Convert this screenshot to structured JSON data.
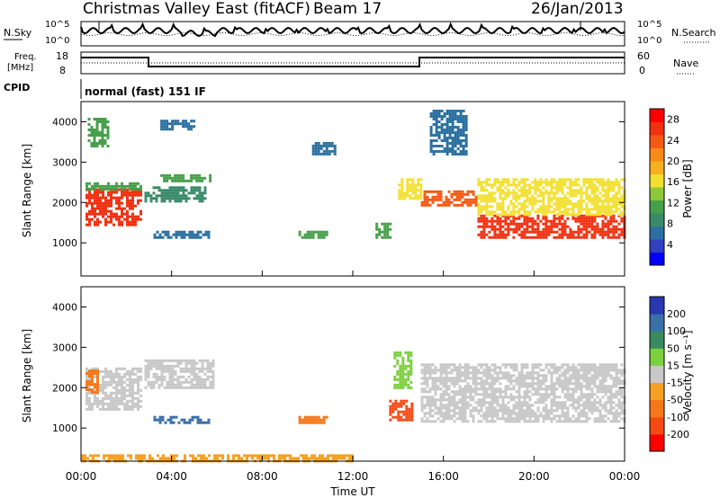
{
  "header": {
    "title": "Christmas Valley East (fitACF)",
    "beam": "Beam 17",
    "date": "26/Jan/2013"
  },
  "info_panels": {
    "nsky_label": "N.Sky",
    "nsky_ticks": [
      "10^5",
      "10^0"
    ],
    "nsearch_label": "N.Search",
    "nsearch_ticks": [
      "10^5",
      "10^0"
    ],
    "freq_label_line1": "Freq.",
    "freq_label_line2": "[MHz]",
    "freq_ticks": [
      "18",
      "8"
    ],
    "nave_label": "Nave",
    "nave_ticks": [
      "60",
      "0"
    ],
    "cpid_label": "CPID",
    "cpid_text": "normal (fast) 151 IF"
  },
  "chart_data": [
    {
      "type": "heatmap",
      "title": "",
      "xlabel": "",
      "ylabel": "Slant Range [km]",
      "xlim": [
        "00:00",
        "24:00"
      ],
      "ylim": [
        180,
        4500
      ],
      "yticks": [
        "1000",
        "2000",
        "3000",
        "4000"
      ],
      "colorbar": {
        "label": "Power [dB]",
        "ticks": [
          "28",
          "24",
          "20",
          "16",
          "12",
          "8",
          "4"
        ],
        "range": [
          0,
          30
        ],
        "colors": [
          "#0000ff",
          "#3040c0",
          "#2b70a0",
          "#3a8a6a",
          "#46a04a",
          "#8cc83a",
          "#f2e030",
          "#f7b020",
          "#f78a18",
          "#f45a14",
          "#f03010",
          "#ff0000"
        ]
      },
      "regions": [
        {
          "t0": 0.2,
          "t1": 2.6,
          "r0": 1450,
          "r1": 2350,
          "value": 26
        },
        {
          "t0": 0.2,
          "t1": 2.6,
          "r0": 2350,
          "r1": 2500,
          "value": 12
        },
        {
          "t0": 0.3,
          "t1": 1.2,
          "r0": 3400,
          "r1": 4100,
          "value": 10
        },
        {
          "t0": 2.8,
          "t1": 5.5,
          "r0": 2000,
          "r1": 2400,
          "value": 8
        },
        {
          "t0": 3.5,
          "t1": 5.7,
          "r0": 2500,
          "r1": 2700,
          "value": 12
        },
        {
          "t0": 3.2,
          "t1": 5.7,
          "r0": 1100,
          "r1": 1300,
          "value": 5
        },
        {
          "t0": 3.5,
          "t1": 5.0,
          "r0": 3800,
          "r1": 4050,
          "value": 5
        },
        {
          "t0": 9.6,
          "t1": 10.8,
          "r0": 1100,
          "r1": 1300,
          "value": 10
        },
        {
          "t0": 10.2,
          "t1": 11.2,
          "r0": 3200,
          "r1": 3500,
          "value": 5
        },
        {
          "t0": 13.0,
          "t1": 13.6,
          "r0": 1100,
          "r1": 1500,
          "value": 12
        },
        {
          "t0": 14.0,
          "t1": 15.0,
          "r0": 2100,
          "r1": 2600,
          "value": 16
        },
        {
          "t0": 15.0,
          "t1": 17.5,
          "r0": 1900,
          "r1": 2300,
          "value": 24
        },
        {
          "t0": 17.5,
          "t1": 24.0,
          "r0": 1150,
          "r1": 1700,
          "value": 26
        },
        {
          "t0": 17.5,
          "t1": 24.0,
          "r0": 1700,
          "r1": 2600,
          "value": 16
        },
        {
          "t0": 15.4,
          "t1": 17.0,
          "r0": 3200,
          "r1": 4300,
          "value": 7
        }
      ]
    },
    {
      "type": "heatmap",
      "title": "",
      "xlabel": "Time UT",
      "ylabel": "Slant Range [km]",
      "xlim": [
        "00:00",
        "24:00"
      ],
      "xticks": [
        "00:00",
        "04:00",
        "08:00",
        "12:00",
        "16:00",
        "20:00",
        "00:00"
      ],
      "ylim": [
        180,
        4500
      ],
      "yticks": [
        "1000",
        "2000",
        "3000",
        "4000"
      ],
      "colorbar": {
        "label": "Velocity [m s⁻¹]",
        "ticks": [
          "200",
          "100",
          "50",
          "15",
          "-15",
          "-50",
          "-100",
          "-200"
        ],
        "colors": [
          "#2838b0",
          "#3a70a8",
          "#3a8a60",
          "#7cd040",
          "#c8c8c8",
          "#f5a020",
          "#f57818",
          "#f44a14",
          "#ff0000"
        ]
      },
      "regions": [
        {
          "t0": 0.2,
          "t1": 2.6,
          "r0": 1450,
          "r1": 2500,
          "value": 0
        },
        {
          "t0": 0.2,
          "t1": 0.7,
          "r0": 1900,
          "r1": 2450,
          "value": -70
        },
        {
          "t0": 2.8,
          "t1": 5.8,
          "r0": 2000,
          "r1": 2700,
          "value": 0
        },
        {
          "t0": 3.2,
          "t1": 5.7,
          "r0": 1100,
          "r1": 1300,
          "value": 150
        },
        {
          "t0": 9.6,
          "t1": 10.8,
          "r0": 1100,
          "r1": 1300,
          "value": -90
        },
        {
          "t0": 13.6,
          "t1": 14.6,
          "r0": 1200,
          "r1": 1700,
          "value": -120
        },
        {
          "t0": 13.8,
          "t1": 14.6,
          "r0": 2000,
          "r1": 2900,
          "value": 30
        },
        {
          "t0": 15.0,
          "t1": 24.0,
          "r0": 1150,
          "r1": 2600,
          "value": 0
        },
        {
          "t0": 0.0,
          "t1": 12.0,
          "r0": 180,
          "r1": 350,
          "value": -40
        }
      ]
    }
  ]
}
